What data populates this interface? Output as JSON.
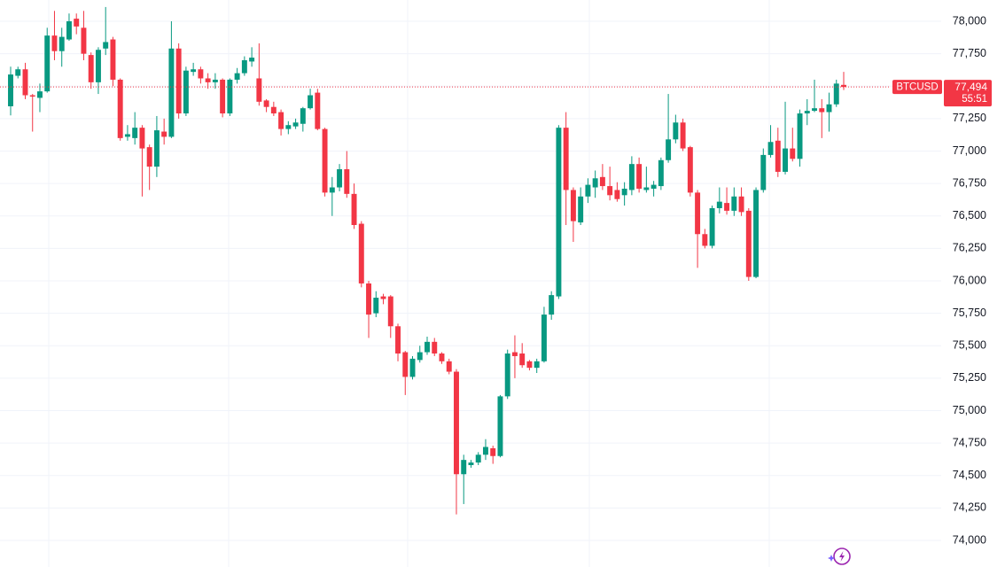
{
  "chart_data": {
    "type": "candlestick",
    "symbol": "BTCUSD",
    "price_label": {
      "value": 77494,
      "label": "77,494"
    },
    "countdown": "55:51",
    "up_color": "#089981",
    "down_color": "#f23645",
    "grid": true,
    "ylim": [
      73795,
      78164
    ],
    "yticks": [
      {
        "value": 74000,
        "label": "74,000"
      },
      {
        "value": 74250,
        "label": "74,250"
      },
      {
        "value": 74500,
        "label": "74,500"
      },
      {
        "value": 74750,
        "label": "74,750"
      },
      {
        "value": 75000,
        "label": "75,000"
      },
      {
        "value": 75250,
        "label": "75,250"
      },
      {
        "value": 75500,
        "label": "75,500"
      },
      {
        "value": 75750,
        "label": "75,750"
      },
      {
        "value": 76000,
        "label": "76,000"
      },
      {
        "value": 76250,
        "label": "76,250"
      },
      {
        "value": 76500,
        "label": "76,500"
      },
      {
        "value": 76750,
        "label": "76,750"
      },
      {
        "value": 77000,
        "label": "77,000"
      },
      {
        "value": 77250,
        "label": "77,250"
      },
      {
        "value": 77500,
        "label": "77,500"
      },
      {
        "value": 77750,
        "label": "77,750"
      },
      {
        "value": 78000,
        "label": "78,000"
      }
    ],
    "ohlc": [
      [
        77345,
        77650,
        77275,
        77590
      ],
      [
        77580,
        77650,
        77560,
        77630
      ],
      [
        77630,
        77680,
        77400,
        77430
      ],
      [
        77430,
        77440,
        77150,
        77420
      ],
      [
        77410,
        77520,
        77300,
        77460
      ],
      [
        77460,
        77950,
        77450,
        77890
      ],
      [
        77890,
        78080,
        77700,
        77770
      ],
      [
        77770,
        77950,
        77650,
        77880
      ],
      [
        77860,
        78060,
        77850,
        78000
      ],
      [
        78020,
        78060,
        77900,
        77960
      ],
      [
        77950,
        78080,
        77700,
        77750
      ],
      [
        77740,
        77760,
        77480,
        77530
      ],
      [
        77530,
        77800,
        77440,
        77780
      ],
      [
        77790,
        78110,
        77740,
        77840
      ],
      [
        77860,
        77880,
        77500,
        77550
      ],
      [
        77550,
        77560,
        77080,
        77100
      ],
      [
        77110,
        77200,
        77080,
        77130
      ],
      [
        77100,
        77300,
        77050,
        77180
      ],
      [
        77180,
        77200,
        76650,
        77020
      ],
      [
        77030,
        77050,
        76700,
        76880
      ],
      [
        76880,
        77270,
        76800,
        77160
      ],
      [
        77150,
        77250,
        77050,
        77110
      ],
      [
        77110,
        78000,
        77100,
        77790
      ],
      [
        77790,
        77830,
        77250,
        77290
      ],
      [
        77290,
        77650,
        77270,
        77620
      ],
      [
        77610,
        77680,
        77580,
        77630
      ],
      [
        77630,
        77650,
        77520,
        77560
      ],
      [
        77560,
        77600,
        77480,
        77530
      ],
      [
        77530,
        77600,
        77480,
        77550
      ],
      [
        77550,
        77560,
        77260,
        77290
      ],
      [
        77290,
        77560,
        77270,
        77550
      ],
      [
        77550,
        77640,
        77520,
        77600
      ],
      [
        77600,
        77730,
        77580,
        77700
      ],
      [
        77690,
        77800,
        77650,
        77720
      ],
      [
        77560,
        77830,
        77350,
        77380
      ],
      [
        77390,
        77400,
        77300,
        77340
      ],
      [
        77340,
        77380,
        77270,
        77290
      ],
      [
        77300,
        77320,
        77120,
        77170
      ],
      [
        77170,
        77230,
        77130,
        77200
      ],
      [
        77190,
        77250,
        77170,
        77220
      ],
      [
        77210,
        77340,
        77150,
        77330
      ],
      [
        77330,
        77480,
        77320,
        77430
      ],
      [
        77450,
        77480,
        77160,
        77170
      ],
      [
        77170,
        77180,
        76650,
        76680
      ],
      [
        76680,
        76800,
        76500,
        76720
      ],
      [
        76720,
        76900,
        76690,
        76860
      ],
      [
        76860,
        77000,
        76640,
        76670
      ],
      [
        76670,
        76750,
        76400,
        76430
      ],
      [
        76440,
        76460,
        75950,
        75980
      ],
      [
        75980,
        76000,
        75560,
        75740
      ],
      [
        75750,
        75920,
        75720,
        75870
      ],
      [
        75880,
        75900,
        75820,
        75860
      ],
      [
        75880,
        75890,
        75560,
        75650
      ],
      [
        75650,
        75670,
        75380,
        75440
      ],
      [
        75450,
        75460,
        75120,
        75260
      ],
      [
        75260,
        75420,
        75240,
        75400
      ],
      [
        75390,
        75500,
        75370,
        75450
      ],
      [
        75450,
        75570,
        75430,
        75530
      ],
      [
        75530,
        75560,
        75420,
        75440
      ],
      [
        75440,
        75450,
        75360,
        75380
      ],
      [
        75380,
        75400,
        75280,
        75300
      ],
      [
        75300,
        75320,
        74200,
        74510
      ],
      [
        74510,
        74660,
        74280,
        74620
      ],
      [
        74580,
        74620,
        74560,
        74600
      ],
      [
        74600,
        74680,
        74580,
        74660
      ],
      [
        74660,
        74780,
        74620,
        74720
      ],
      [
        74710,
        74730,
        74590,
        74650
      ],
      [
        74650,
        75120,
        74640,
        75110
      ],
      [
        75110,
        75470,
        75090,
        75440
      ],
      [
        75450,
        75580,
        75250,
        75420
      ],
      [
        75440,
        75520,
        75330,
        75350
      ],
      [
        75380,
        75390,
        75310,
        75330
      ],
      [
        75330,
        75400,
        75290,
        75380
      ],
      [
        75380,
        75800,
        75370,
        75740
      ],
      [
        75740,
        75920,
        75700,
        75890
      ],
      [
        75880,
        77200,
        75860,
        77180
      ],
      [
        77180,
        77300,
        76430,
        76700
      ],
      [
        76700,
        76720,
        76300,
        76460
      ],
      [
        76450,
        76720,
        76430,
        76650
      ],
      [
        76650,
        76790,
        76600,
        76740
      ],
      [
        76720,
        76850,
        76640,
        76790
      ],
      [
        76800,
        76900,
        76700,
        76730
      ],
      [
        76730,
        76880,
        76620,
        76660
      ],
      [
        76700,
        76760,
        76610,
        76630
      ],
      [
        76660,
        76760,
        76580,
        76710
      ],
      [
        76700,
        76960,
        76660,
        76900
      ],
      [
        76900,
        76950,
        76680,
        76710
      ],
      [
        76700,
        76880,
        76680,
        76720
      ],
      [
        76710,
        76770,
        76650,
        76740
      ],
      [
        76730,
        76950,
        76700,
        76930
      ],
      [
        76930,
        77440,
        76910,
        77090
      ],
      [
        77090,
        77280,
        77060,
        77220
      ],
      [
        77220,
        77250,
        77000,
        77020
      ],
      [
        77030,
        77040,
        76650,
        76680
      ],
      [
        76680,
        76700,
        76100,
        76360
      ],
      [
        76360,
        76400,
        76250,
        76270
      ],
      [
        76270,
        76580,
        76250,
        76560
      ],
      [
        76560,
        76720,
        76520,
        76610
      ],
      [
        76600,
        76720,
        76510,
        76540
      ],
      [
        76540,
        76720,
        76500,
        76650
      ],
      [
        76650,
        76720,
        76500,
        76530
      ],
      [
        76540,
        76560,
        76000,
        76030
      ],
      [
        76030,
        76720,
        76020,
        76700
      ],
      [
        76700,
        77020,
        76680,
        76970
      ],
      [
        76970,
        77200,
        76950,
        77070
      ],
      [
        77080,
        77180,
        76800,
        76840
      ],
      [
        76840,
        77380,
        76820,
        77020
      ],
      [
        77020,
        77180,
        76920,
        76940
      ],
      [
        76940,
        77320,
        76880,
        77290
      ],
      [
        77290,
        77400,
        77200,
        77310
      ],
      [
        77310,
        77550,
        77300,
        77330
      ],
      [
        77330,
        77400,
        77100,
        77300
      ],
      [
        77300,
        77450,
        77150,
        77360
      ],
      [
        77360,
        77550,
        77340,
        77520
      ],
      [
        77510,
        77610,
        77470,
        77494
      ]
    ]
  }
}
